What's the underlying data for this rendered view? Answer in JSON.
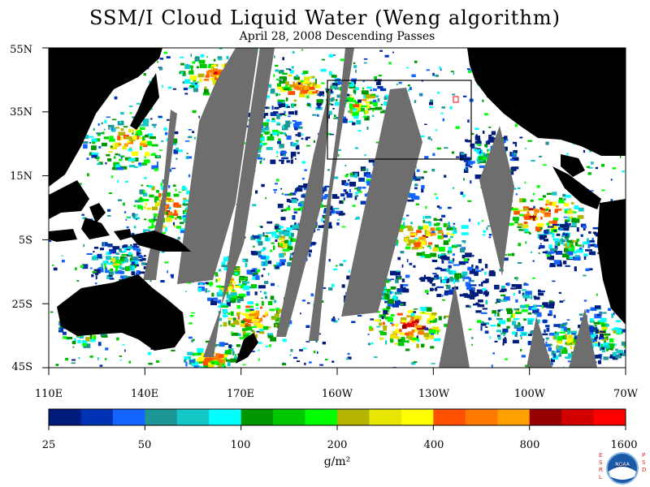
{
  "title": "SSM/I Cloud Liquid Water (Weng algorithm)",
  "subtitle": "April 28, 2008  Descending Passes",
  "lat_labels": [
    "55N",
    "35N",
    "15N",
    "5S",
    "25S",
    "45S"
  ],
  "lon_labels": [
    "110E",
    "140E",
    "170E",
    "160W",
    "130W",
    "100W",
    "70W"
  ],
  "colorbar": {
    "labels": [
      "25",
      "50",
      "100",
      "200",
      "400",
      "800",
      "1600"
    ],
    "units": "g/m²",
    "colors": [
      "#001c7a",
      "#0032b4",
      "#1464ff",
      "#1e9696",
      "#14c8c8",
      "#00ffff",
      "#009600",
      "#00c800",
      "#00ff00",
      "#b4b400",
      "#e6e600",
      "#ffff00",
      "#ff5000",
      "#ff7800",
      "#ffa000",
      "#960000",
      "#d20000",
      "#ff0000"
    ]
  },
  "map_colors": {
    "land": "#000000",
    "missing": "#6e6e6e",
    "clear": "#ffffff",
    "box": "#000000",
    "marker": "#ff0000"
  },
  "logo": {
    "left": "ESRL",
    "center": "NOAA",
    "right": "PSD"
  }
}
